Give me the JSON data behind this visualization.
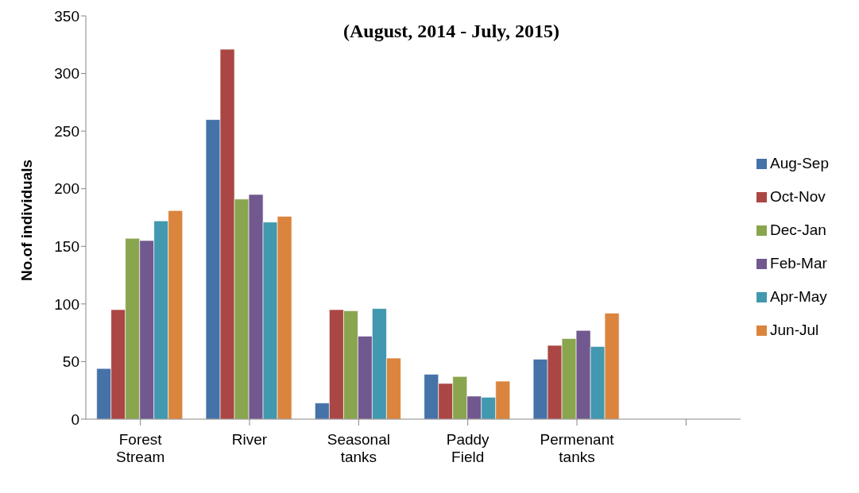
{
  "chart_data": {
    "type": "bar",
    "title": "(August, 2014 - July, 2015)",
    "ylabel": "No.of individuals",
    "categories": [
      "Forest Stream",
      "River",
      "Seasonal tanks",
      "Paddy Field",
      "Permenant tanks",
      null
    ],
    "series": [
      {
        "name": "Aug-Sep",
        "color": "#4572a7",
        "values": [
          44,
          260,
          14,
          39,
          52,
          null
        ]
      },
      {
        "name": "Oct-Nov",
        "color": "#aa4643",
        "values": [
          95,
          321,
          95,
          31,
          64,
          null
        ]
      },
      {
        "name": "Dec-Jan",
        "color": "#89a54e",
        "values": [
          157,
          191,
          94,
          37,
          70,
          null
        ]
      },
      {
        "name": "Feb-Mar",
        "color": "#71588f",
        "values": [
          155,
          195,
          72,
          20,
          77,
          null
        ]
      },
      {
        "name": "Apr-May",
        "color": "#4198af",
        "values": [
          172,
          171,
          96,
          19,
          63,
          null
        ]
      },
      {
        "name": "Jun-Jul",
        "color": "#db843d",
        "values": [
          181,
          176,
          53,
          33,
          92,
          null
        ]
      }
    ],
    "ylim": [
      0,
      350
    ],
    "yticks": [
      0,
      50,
      100,
      150,
      200,
      250,
      300,
      350
    ],
    "grid": false,
    "legend": "right"
  }
}
